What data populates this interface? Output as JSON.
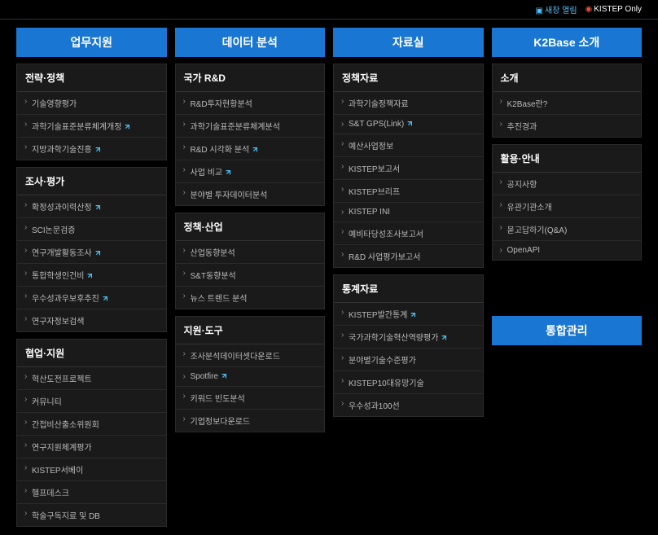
{
  "topbar": {
    "link1": "새창 열림",
    "link2": "KISTEP Only"
  },
  "columns": [
    {
      "title": "업무지원",
      "sections": [
        {
          "title": "전략·정책",
          "items": [
            {
              "label": "기술영향평가",
              "ext": false
            },
            {
              "label": "과학기술표준분류체계개정",
              "ext": true
            },
            {
              "label": "지방과학기술진흥",
              "ext": true
            }
          ]
        },
        {
          "title": "조사·평가",
          "items": [
            {
              "label": "확정성과이력산정",
              "ext": true
            },
            {
              "label": "SCI논문검증",
              "ext": false
            },
            {
              "label": "연구개발활동조사",
              "ext": true
            },
            {
              "label": "통합학생인건비",
              "ext": true
            },
            {
              "label": "우수성과우보후추진",
              "ext": true
            },
            {
              "label": "연구자정보검색",
              "ext": false
            }
          ]
        },
        {
          "title": "협업·지원",
          "items": [
            {
              "label": "혁산도전프로젝트",
              "ext": false
            },
            {
              "label": "커뮤니티",
              "ext": false
            },
            {
              "label": "간접비산출소위원회",
              "ext": false
            },
            {
              "label": "연구지원체계평가",
              "ext": false
            },
            {
              "label": "KISTEP서베이",
              "ext": false
            },
            {
              "label": "헬프데스크",
              "ext": false
            },
            {
              "label": "학술구독지료 및 DB",
              "ext": false
            }
          ]
        }
      ]
    },
    {
      "title": "데이터 분석",
      "sections": [
        {
          "title": "국가 R&D",
          "items": [
            {
              "label": "R&D투자현황분석",
              "ext": false
            },
            {
              "label": "과학기술표준분류체계분석",
              "ext": false
            },
            {
              "label": "R&D 시각화 분석",
              "ext": true
            },
            {
              "label": "사업 비교",
              "ext": true
            },
            {
              "label": "분야별 투자데이터분석",
              "ext": false
            }
          ]
        },
        {
          "title": "정책·산업",
          "items": [
            {
              "label": "산업동향분석",
              "ext": false
            },
            {
              "label": "S&T동향분석",
              "ext": false
            },
            {
              "label": "뉴스 트렌드 분석",
              "ext": false
            }
          ]
        },
        {
          "title": "지원·도구",
          "items": [
            {
              "label": "조사분석데이터셋다운로드",
              "ext": false
            },
            {
              "label": "Spotfire",
              "ext": true
            },
            {
              "label": "키워드 빈도분석",
              "ext": false
            },
            {
              "label": "기업정보다운로드",
              "ext": false
            }
          ]
        }
      ]
    },
    {
      "title": "자료실",
      "sections": [
        {
          "title": "정책자료",
          "items": [
            {
              "label": "과학기술정책자료",
              "ext": false
            },
            {
              "label": "S&T GPS(Link)",
              "ext": true
            },
            {
              "label": "예산사업정보",
              "ext": false
            },
            {
              "label": "KISTEP보고서",
              "ext": false
            },
            {
              "label": "KISTEP브리프",
              "ext": false
            },
            {
              "label": "KISTEP INI",
              "ext": false
            },
            {
              "label": "예비타당성조사보고서",
              "ext": false
            },
            {
              "label": "R&D 사업평가보고서",
              "ext": false
            }
          ]
        },
        {
          "title": "통계자료",
          "items": [
            {
              "label": "KISTEP발간통계",
              "ext": true
            },
            {
              "label": "국가과학기술혁산역량평가",
              "ext": true
            },
            {
              "label": "분야별기술수준평가",
              "ext": false
            },
            {
              "label": "KISTEP10대유망기술",
              "ext": false
            },
            {
              "label": "우수성과100선",
              "ext": false
            }
          ]
        }
      ]
    },
    {
      "title": "K2Base 소개",
      "sections": [
        {
          "title": "소개",
          "items": [
            {
              "label": "K2Base란?",
              "ext": false
            },
            {
              "label": "추진경과",
              "ext": false
            }
          ]
        },
        {
          "title": "활용·안내",
          "items": [
            {
              "label": "공지사항",
              "ext": false
            },
            {
              "label": "유관기관소개",
              "ext": false
            },
            {
              "label": "묻고답하기(Q&A)",
              "ext": false
            },
            {
              "label": "OpenAPI",
              "ext": false
            }
          ]
        }
      ],
      "footer_header": "통합관리"
    }
  ]
}
